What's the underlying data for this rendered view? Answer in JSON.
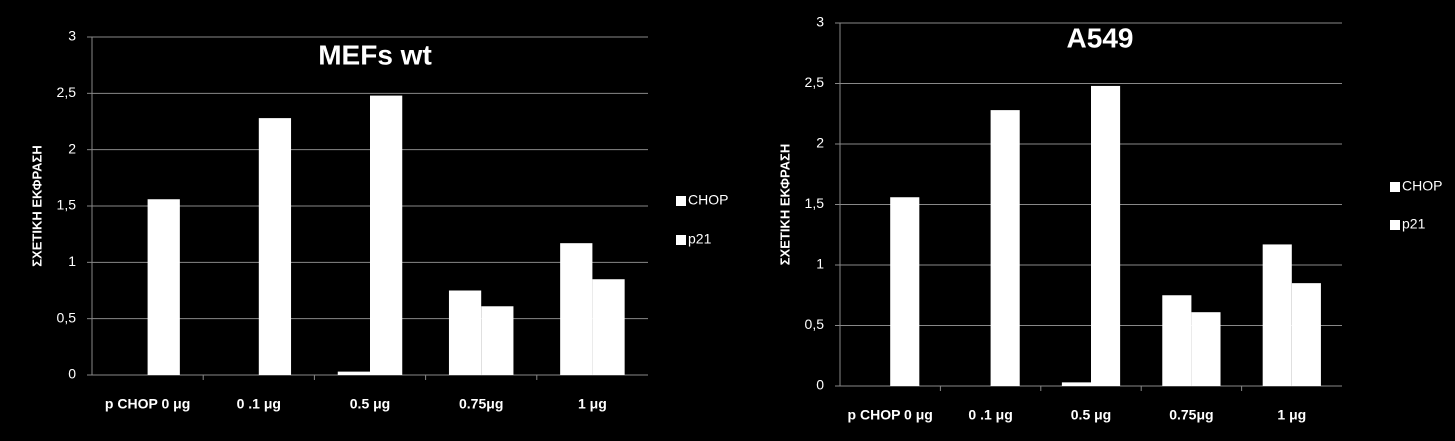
{
  "chart_data": [
    {
      "type": "bar",
      "title": "MEFs wt",
      "y_label": "ΣΧΕΤΙΚΗ ΕΚΦΡΑΣΗ",
      "categories": [
        "p CHOP 0 μg",
        "0 .1 μg",
        "0.5 μg",
        "0.75μg",
        "1 μg"
      ],
      "series": [
        {
          "name": "CHOP",
          "color": "#ffffff",
          "values": [
            0,
            0,
            0.03,
            0.75,
            1.17
          ]
        },
        {
          "name": "p21",
          "color": "#ffffff",
          "values": [
            1.56,
            2.28,
            2.48,
            0.61,
            0.85
          ]
        }
      ],
      "ylim": [
        0,
        3
      ],
      "yticks": [
        0,
        {
          "value": 0.5,
          "label": "0,5"
        },
        1,
        {
          "value": 1.5,
          "label": "1,5"
        },
        2,
        {
          "value": 2.5,
          "label": "2,5"
        },
        3
      ],
      "grid": true
    },
    {
      "type": "bar",
      "title": "A549",
      "y_label": "ΣΧΕΤΙΚΗ ΕΚΦΡΑΣΗ",
      "categories": [
        "p CHOP 0 μg",
        "0 .1 μg",
        "0.5 μg",
        "0.75μg",
        "1 μg"
      ],
      "series": [
        {
          "name": "CHOP",
          "color": "#ffffff",
          "values": [
            0,
            0,
            0.03,
            0.75,
            1.17
          ]
        },
        {
          "name": "p21",
          "color": "#ffffff",
          "values": [
            1.56,
            2.28,
            2.48,
            0.61,
            0.85
          ]
        }
      ],
      "ylim": [
        0,
        3
      ],
      "yticks": [
        0,
        {
          "value": 0.5,
          "label": "0,5"
        },
        1,
        {
          "value": 1.5,
          "label": "1,5"
        },
        2,
        {
          "value": 2.5,
          "label": "2,5"
        },
        3
      ],
      "grid": true
    }
  ]
}
